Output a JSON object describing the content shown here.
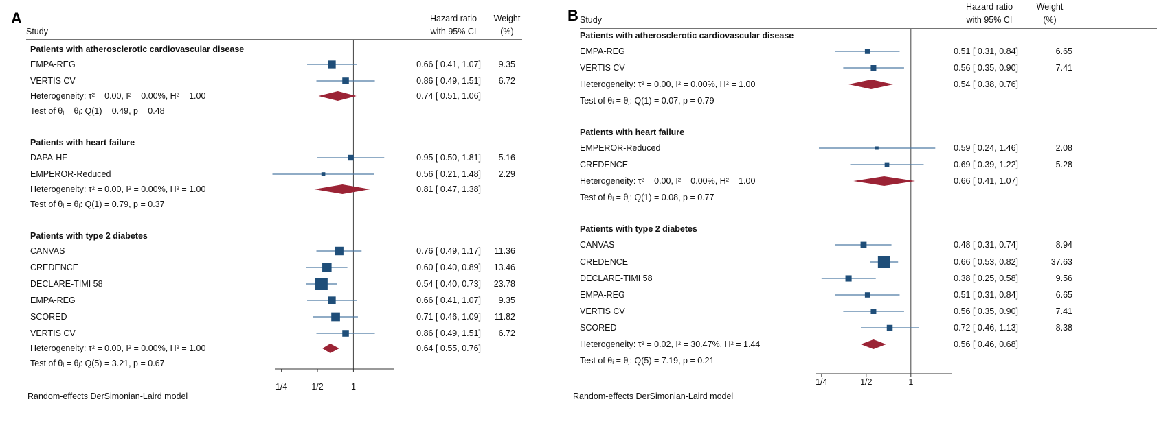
{
  "chart_data": [
    {
      "type": "forest",
      "panel_label": "A",
      "columns": {
        "study": "Study",
        "hr_line1": "Hazard ratio",
        "hr_line2": "with 95% CI",
        "weight_line1": "Weight",
        "weight_line2": "(%)"
      },
      "axis": {
        "scale": "log2",
        "range": [
          0.22,
          2.2
        ],
        "reference": 1,
        "ticks": [
          {
            "value": 0.25,
            "label": "1/4"
          },
          {
            "value": 0.5,
            "label": "1/2"
          },
          {
            "value": 1,
            "label": "1"
          }
        ]
      },
      "groups": [
        {
          "title": "Patients with atherosclerotic cardiovascular disease",
          "studies": [
            {
              "name": "EMPA-REG",
              "hr": 0.66,
              "lo": 0.41,
              "hi": 1.07,
              "hr_text": "0.66 [ 0.41, 1.07]",
              "weight": 9.35,
              "weight_text": "9.35"
            },
            {
              "name": "VERTIS CV",
              "hr": 0.86,
              "lo": 0.49,
              "hi": 1.51,
              "hr_text": "0.86 [ 0.49, 1.51]",
              "weight": 6.72,
              "weight_text": "6.72"
            }
          ],
          "heterogeneity": "Heterogeneity: τ² = 0.00, I² = 0.00%, H² = 1.00",
          "pooled": {
            "hr": 0.74,
            "lo": 0.51,
            "hi": 1.06,
            "hr_text": "0.74 [ 0.51, 1.06]"
          },
          "test": "Test of θᵢ = θⱼ: Q(1) = 0.49, p = 0.48"
        },
        {
          "title": "Patients with heart failure",
          "studies": [
            {
              "name": "DAPA-HF",
              "hr": 0.95,
              "lo": 0.5,
              "hi": 1.81,
              "hr_text": "0.95 [ 0.50, 1.81]",
              "weight": 5.16,
              "weight_text": "5.16"
            },
            {
              "name": "EMPEROR-Reduced",
              "hr": 0.56,
              "lo": 0.21,
              "hi": 1.48,
              "hr_text": "0.56 [ 0.21, 1.48]",
              "weight": 2.29,
              "weight_text": "2.29"
            }
          ],
          "heterogeneity": "Heterogeneity: τ² = 0.00, I² = 0.00%, H² = 1.00",
          "pooled": {
            "hr": 0.81,
            "lo": 0.47,
            "hi": 1.38,
            "hr_text": "0.81 [ 0.47, 1.38]"
          },
          "test": "Test of θᵢ = θⱼ: Q(1) = 0.79, p = 0.37"
        },
        {
          "title": "Patients with type 2 diabetes",
          "studies": [
            {
              "name": "CANVAS",
              "hr": 0.76,
              "lo": 0.49,
              "hi": 1.17,
              "hr_text": "0.76 [ 0.49, 1.17]",
              "weight": 11.36,
              "weight_text": "11.36"
            },
            {
              "name": "CREDENCE",
              "hr": 0.6,
              "lo": 0.4,
              "hi": 0.89,
              "hr_text": "0.60 [ 0.40, 0.89]",
              "weight": 13.46,
              "weight_text": "13.46"
            },
            {
              "name": "DECLARE-TIMI 58",
              "hr": 0.54,
              "lo": 0.4,
              "hi": 0.73,
              "hr_text": "0.54 [ 0.40, 0.73]",
              "weight": 23.78,
              "weight_text": "23.78"
            },
            {
              "name": "EMPA-REG",
              "hr": 0.66,
              "lo": 0.41,
              "hi": 1.07,
              "hr_text": "0.66 [ 0.41, 1.07]",
              "weight": 9.35,
              "weight_text": "9.35"
            },
            {
              "name": "SCORED",
              "hr": 0.71,
              "lo": 0.46,
              "hi": 1.09,
              "hr_text": "0.71 [ 0.46, 1.09]",
              "weight": 11.82,
              "weight_text": "11.82"
            },
            {
              "name": "VERTIS CV",
              "hr": 0.86,
              "lo": 0.49,
              "hi": 1.51,
              "hr_text": "0.86 [ 0.49, 1.51]",
              "weight": 6.72,
              "weight_text": "6.72"
            }
          ],
          "heterogeneity": "Heterogeneity: τ² = 0.00, I² = 0.00%, H² = 1.00",
          "pooled": {
            "hr": 0.64,
            "lo": 0.55,
            "hi": 0.76,
            "hr_text": "0.64 [ 0.55, 0.76]"
          },
          "test": "Test of θᵢ = θⱼ: Q(5) = 3.21, p = 0.67"
        }
      ],
      "footnote": "Random-effects DerSimonian-Laird model"
    },
    {
      "type": "forest",
      "panel_label": "B",
      "columns": {
        "study": "Study",
        "hr_line1": "Hazard ratio",
        "hr_line2": "with 95% CI",
        "weight_line1": "Weight",
        "weight_line2": "(%)"
      },
      "axis": {
        "scale": "log2",
        "range": [
          0.23,
          1.9
        ],
        "reference": 1,
        "ticks": [
          {
            "value": 0.25,
            "label": "1/4"
          },
          {
            "value": 0.5,
            "label": "1/2"
          },
          {
            "value": 1,
            "label": "1"
          }
        ]
      },
      "groups": [
        {
          "title": "Patients with atherosclerotic cardiovascular disease",
          "studies": [
            {
              "name": "EMPA-REG",
              "hr": 0.51,
              "lo": 0.31,
              "hi": 0.84,
              "hr_text": "0.51 [ 0.31, 0.84]",
              "weight": 6.65,
              "weight_text": "6.65"
            },
            {
              "name": "VERTIS CV",
              "hr": 0.56,
              "lo": 0.35,
              "hi": 0.9,
              "hr_text": "0.56 [ 0.35, 0.90]",
              "weight": 7.41,
              "weight_text": "7.41"
            }
          ],
          "heterogeneity": "Heterogeneity: τ² = 0.00, I² = 0.00%, H² = 1.00",
          "pooled": {
            "hr": 0.54,
            "lo": 0.38,
            "hi": 0.76,
            "hr_text": "0.54 [ 0.38, 0.76]"
          },
          "test": "Test of θᵢ = θⱼ: Q(1) = 0.07, p = 0.79"
        },
        {
          "title": "Patients with heart failure",
          "studies": [
            {
              "name": "EMPEROR-Reduced",
              "hr": 0.59,
              "lo": 0.24,
              "hi": 1.46,
              "hr_text": "0.59 [ 0.24, 1.46]",
              "weight": 2.08,
              "weight_text": "2.08"
            },
            {
              "name": "CREDENCE",
              "hr": 0.69,
              "lo": 0.39,
              "hi": 1.22,
              "hr_text": "0.69 [ 0.39, 1.22]",
              "weight": 5.28,
              "weight_text": "5.28"
            }
          ],
          "heterogeneity": "Heterogeneity: τ² = 0.00, I² = 0.00%, H² = 1.00",
          "pooled": {
            "hr": 0.66,
            "lo": 0.41,
            "hi": 1.07,
            "hr_text": "0.66 [ 0.41, 1.07]"
          },
          "test": "Test of θᵢ = θⱼ: Q(1) = 0.08, p = 0.77"
        },
        {
          "title": "Patients with type 2 diabetes",
          "studies": [
            {
              "name": "CANVAS",
              "hr": 0.48,
              "lo": 0.31,
              "hi": 0.74,
              "hr_text": "0.48 [ 0.31, 0.74]",
              "weight": 8.94,
              "weight_text": "8.94"
            },
            {
              "name": "CREDENCE",
              "hr": 0.66,
              "lo": 0.53,
              "hi": 0.82,
              "hr_text": "0.66 [ 0.53, 0.82]",
              "weight": 37.63,
              "weight_text": "37.63"
            },
            {
              "name": "DECLARE-TIMI 58",
              "hr": 0.38,
              "lo": 0.25,
              "hi": 0.58,
              "hr_text": "0.38 [ 0.25, 0.58]",
              "weight": 9.56,
              "weight_text": "9.56"
            },
            {
              "name": "EMPA-REG",
              "hr": 0.51,
              "lo": 0.31,
              "hi": 0.84,
              "hr_text": "0.51 [ 0.31, 0.84]",
              "weight": 6.65,
              "weight_text": "6.65"
            },
            {
              "name": "VERTIS CV",
              "hr": 0.56,
              "lo": 0.35,
              "hi": 0.9,
              "hr_text": "0.56 [ 0.35, 0.90]",
              "weight": 7.41,
              "weight_text": "7.41"
            },
            {
              "name": "SCORED",
              "hr": 0.72,
              "lo": 0.46,
              "hi": 1.13,
              "hr_text": "0.72 [ 0.46, 1.13]",
              "weight": 8.38,
              "weight_text": "8.38"
            }
          ],
          "heterogeneity": "Heterogeneity: τ² = 0.02, I² = 30.47%, H² = 1.44",
          "pooled": {
            "hr": 0.56,
            "lo": 0.46,
            "hi": 0.68,
            "hr_text": "0.56 [ 0.46, 0.68]"
          },
          "test": "Test of θᵢ = θⱼ: Q(5) = 7.19, p = 0.21"
        }
      ],
      "footnote": "Random-effects DerSimonian-Laird model"
    }
  ],
  "colors": {
    "marker": "#1f4e79",
    "ci_line": "#4d7aa3",
    "diamond": "#9b2335",
    "axis": "#333333",
    "text": "#111111"
  }
}
